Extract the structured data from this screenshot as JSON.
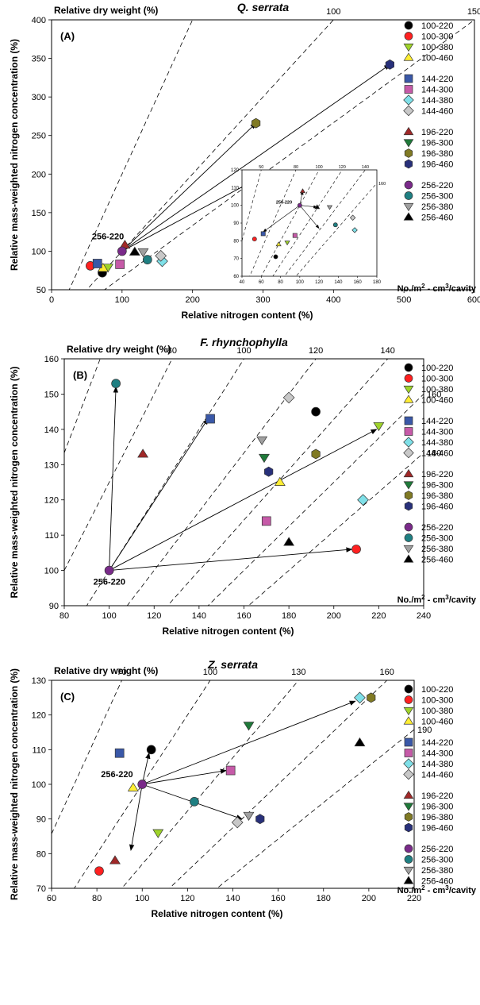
{
  "legend_categories": [
    [
      "100-220",
      "100-300",
      "100-380",
      "100-460"
    ],
    [
      "144-220",
      "144-300",
      "144-380",
      "144-460"
    ],
    [
      "196-220",
      "196-300",
      "196-380",
      "196-460"
    ],
    [
      "256-220",
      "256-300",
      "256-380",
      "256-460"
    ]
  ],
  "legend_colors": [
    [
      "#000000",
      "#ff2020",
      "#9fd42a",
      "#ffee33"
    ],
    [
      "#3a58a8",
      "#c65aa8",
      "#7fe0e8",
      "#c8c8c8"
    ],
    [
      "#a02828",
      "#1f7a3a",
      "#807a24",
      "#28307a"
    ],
    [
      "#7a2a8a",
      "#1f7f82",
      "#a0a0a0",
      "#000000"
    ]
  ],
  "legend_shapes": [
    "circle",
    "square",
    "diamond-tri",
    "hex",
    "circle-tri"
  ],
  "units_label": "No./m",
  "units_sup": "2",
  "units_rest": " - cm",
  "units_sup2": "3",
  "units_tail": "/cavity",
  "chart_data": [
    {
      "type": "scatter",
      "title": "Q. serrata",
      "panel_label": "(A)",
      "xlabel": "Relative nitrogen content (%)",
      "ylabel": "Relative mass-weighted nitrogen concentration (%)",
      "top_label": "Relative dry weight (%)",
      "xlim": [
        0,
        600
      ],
      "ylim": [
        50,
        400
      ],
      "xticks": [
        0,
        100,
        200,
        300,
        400,
        500,
        600
      ],
      "yticks": [
        50,
        100,
        150,
        200,
        250,
        300,
        350,
        400
      ],
      "dry_weight_lines": [
        50,
        100,
        150
      ],
      "dry_weight_labels": [
        "100",
        "150"
      ],
      "reference_label": "256-220",
      "reference": {
        "x": 100,
        "y": 100
      },
      "points": [
        {
          "name": "100-220",
          "x": 72,
          "y": 72
        },
        {
          "name": "100-300",
          "x": 55,
          "y": 81
        },
        {
          "name": "100-380",
          "x": 80,
          "y": 79
        },
        {
          "name": "100-460",
          "x": 73,
          "y": 78
        },
        {
          "name": "144-220",
          "x": 65,
          "y": 84
        },
        {
          "name": "144-300",
          "x": 97,
          "y": 83
        },
        {
          "name": "144-380",
          "x": 157,
          "y": 87
        },
        {
          "name": "144-460",
          "x": 155,
          "y": 94
        },
        {
          "name": "196-220",
          "x": 104,
          "y": 108
        },
        {
          "name": "196-300",
          "x": 288,
          "y": 192
        },
        {
          "name": "196-380",
          "x": 290,
          "y": 266
        },
        {
          "name": "196-460",
          "x": 480,
          "y": 342
        },
        {
          "name": "256-220",
          "x": 100,
          "y": 100
        },
        {
          "name": "256-300",
          "x": 136,
          "y": 89
        },
        {
          "name": "256-380",
          "x": 130,
          "y": 99
        },
        {
          "name": "256-460",
          "x": 118,
          "y": 99
        }
      ],
      "arrows_to": [
        [
          480,
          342
        ],
        [
          290,
          266
        ],
        [
          288,
          192
        ]
      ],
      "inset": {
        "xlim": [
          40,
          180
        ],
        "ylim": [
          60,
          120
        ],
        "xticks": [
          40,
          60,
          80,
          100,
          120,
          140,
          160,
          180
        ],
        "yticks": [
          60,
          70,
          80,
          90,
          100,
          110,
          120
        ],
        "top_ticks": [
          "50",
          "80",
          "100",
          "120",
          "140"
        ],
        "right_label": "160",
        "dry_weight_lines": [
          50,
          80,
          100,
          120,
          140,
          160
        ],
        "reference_label": "256-220",
        "points": [
          {
            "name": "100-220",
            "x": 75,
            "y": 71
          },
          {
            "name": "100-300",
            "x": 53,
            "y": 81
          },
          {
            "name": "100-380",
            "x": 87,
            "y": 79
          },
          {
            "name": "100-460",
            "x": 78,
            "y": 78
          },
          {
            "name": "144-220",
            "x": 62,
            "y": 84
          },
          {
            "name": "144-300",
            "x": 95,
            "y": 83
          },
          {
            "name": "144-380",
            "x": 157,
            "y": 86
          },
          {
            "name": "144-460",
            "x": 155,
            "y": 93
          },
          {
            "name": "196-220",
            "x": 103,
            "y": 108
          },
          {
            "name": "256-220",
            "x": 100,
            "y": 100
          },
          {
            "name": "256-300",
            "x": 137,
            "y": 89
          },
          {
            "name": "256-380",
            "x": 131,
            "y": 99
          },
          {
            "name": "256-460",
            "x": 118,
            "y": 99
          }
        ],
        "arrows_to": [
          [
            62,
            85
          ],
          [
            103,
            108
          ],
          [
            118,
            99
          ],
          [
            120,
            87
          ]
        ]
      }
    },
    {
      "type": "scatter",
      "title": "F. rhynchophylla",
      "panel_label": "(B)",
      "xlabel": "Relative nitrogen content (%)",
      "ylabel": "Relative mass-weighted nitrogen concentration (%)",
      "top_label": "Relative dry weight (%)",
      "xlim": [
        80,
        240
      ],
      "ylim": [
        90,
        160
      ],
      "xticks": [
        80,
        100,
        120,
        140,
        160,
        180,
        200,
        220,
        240
      ],
      "yticks": [
        90,
        100,
        110,
        120,
        130,
        140,
        150,
        160
      ],
      "dry_weight_lines": [
        60,
        80,
        100,
        120,
        140,
        160,
        180
      ],
      "dry_weight_labels": [
        "80",
        "100",
        "120",
        "140",
        "160",
        "180"
      ],
      "reference_label": "256-220",
      "reference": {
        "x": 100,
        "y": 100
      },
      "points": [
        {
          "name": "100-220",
          "x": 192,
          "y": 145
        },
        {
          "name": "100-300",
          "x": 210,
          "y": 106
        },
        {
          "name": "100-380",
          "x": 220,
          "y": 141
        },
        {
          "name": "100-460",
          "x": 176,
          "y": 125
        },
        {
          "name": "144-220",
          "x": 145,
          "y": 143
        },
        {
          "name": "144-300",
          "x": 170,
          "y": 114
        },
        {
          "name": "144-380",
          "x": 213,
          "y": 120
        },
        {
          "name": "144-460",
          "x": 180,
          "y": 149
        },
        {
          "name": "196-220",
          "x": 115,
          "y": 133
        },
        {
          "name": "196-300",
          "x": 169,
          "y": 132
        },
        {
          "name": "196-380",
          "x": 192,
          "y": 133
        },
        {
          "name": "196-460",
          "x": 171,
          "y": 128
        },
        {
          "name": "256-220",
          "x": 100,
          "y": 100
        },
        {
          "name": "256-300",
          "x": 103,
          "y": 153
        },
        {
          "name": "256-380",
          "x": 168,
          "y": 137
        },
        {
          "name": "256-460",
          "x": 180,
          "y": 108
        }
      ],
      "arrows_to": [
        [
          103,
          152
        ],
        [
          144,
          143
        ],
        [
          219,
          140
        ],
        [
          208,
          106
        ]
      ]
    },
    {
      "type": "scatter",
      "title": "Z. serrata",
      "panel_label": "(C)",
      "xlabel": "Relative nitrogen content (%)",
      "ylabel": "Relative mass-weighted nitrogen concentration (%)",
      "top_label": "Relative dry weight (%)",
      "xlim": [
        60,
        220
      ],
      "ylim": [
        70,
        130
      ],
      "xticks": [
        60,
        80,
        100,
        120,
        140,
        160,
        180,
        200,
        220
      ],
      "yticks": [
        70,
        80,
        90,
        100,
        110,
        120,
        130
      ],
      "dry_weight_lines": [
        40,
        70,
        100,
        130,
        160,
        190
      ],
      "dry_weight_labels": [
        "70",
        "100",
        "130",
        "160",
        "190"
      ],
      "reference_label": "256-220",
      "reference": {
        "x": 100,
        "y": 100
      },
      "points": [
        {
          "name": "100-220",
          "x": 104,
          "y": 110
        },
        {
          "name": "100-300",
          "x": 81,
          "y": 75
        },
        {
          "name": "100-380",
          "x": 107,
          "y": 86
        },
        {
          "name": "100-460",
          "x": 96,
          "y": 99
        },
        {
          "name": "144-220",
          "x": 90,
          "y": 109
        },
        {
          "name": "144-300",
          "x": 139,
          "y": 104
        },
        {
          "name": "144-380",
          "x": 196,
          "y": 125
        },
        {
          "name": "144-460",
          "x": 142,
          "y": 89
        },
        {
          "name": "196-220",
          "x": 88,
          "y": 78
        },
        {
          "name": "196-300",
          "x": 147,
          "y": 117
        },
        {
          "name": "196-380",
          "x": 201,
          "y": 125
        },
        {
          "name": "196-460",
          "x": 152,
          "y": 90
        },
        {
          "name": "256-220",
          "x": 100,
          "y": 100
        },
        {
          "name": "256-300",
          "x": 123,
          "y": 95
        },
        {
          "name": "256-380",
          "x": 147,
          "y": 91
        },
        {
          "name": "256-460",
          "x": 196,
          "y": 112
        }
      ],
      "arrows_to": [
        [
          103,
          109
        ],
        [
          137,
          104
        ],
        [
          194,
          124
        ],
        [
          144,
          90
        ],
        [
          95,
          81
        ]
      ]
    }
  ]
}
